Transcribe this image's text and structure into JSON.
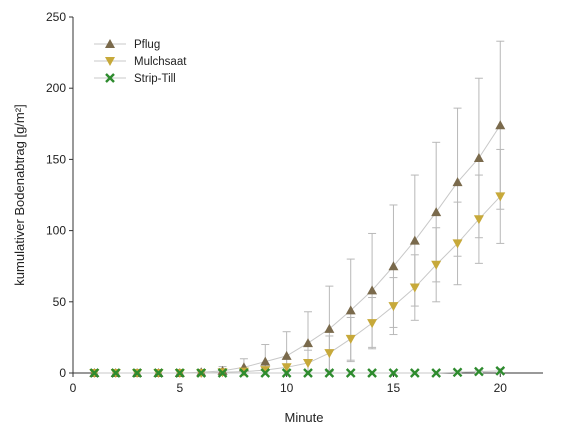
{
  "chart_data": {
    "type": "line",
    "xlabel": "Minute",
    "ylabel": "kumulativer Bodenabtrag [g/m²]",
    "xlim": [
      0,
      22
    ],
    "ylim": [
      0,
      250
    ],
    "xticks": [
      0,
      5,
      10,
      15,
      20
    ],
    "yticks": [
      0,
      50,
      100,
      150,
      200,
      250
    ],
    "grid": false,
    "legend_position": "top-left",
    "x": [
      1,
      2,
      3,
      4,
      5,
      6,
      7,
      8,
      9,
      10,
      11,
      12,
      13,
      14,
      15,
      16,
      17,
      18,
      19,
      20
    ],
    "series": [
      {
        "name": "Pflug",
        "marker": "triangle-up",
        "color": "#7a6a4c",
        "values": [
          0,
          0,
          0,
          0,
          0,
          0.5,
          1.5,
          4,
          8,
          12,
          21,
          31,
          44,
          58,
          75,
          93,
          113,
          134,
          151,
          174
        ],
        "error": [
          0,
          0,
          0,
          0,
          0,
          1,
          3,
          6,
          12,
          17,
          22,
          30,
          36,
          40,
          43,
          46,
          49,
          52,
          56,
          59
        ]
      },
      {
        "name": "Mulchsaat",
        "marker": "triangle-down",
        "color": "#c7a93a",
        "values": [
          0,
          0,
          0,
          0,
          0,
          0,
          0.5,
          1,
          2,
          4,
          7,
          14,
          24,
          35,
          47,
          60,
          76,
          91,
          108,
          124
        ],
        "error": [
          0,
          0,
          0,
          0,
          0,
          0,
          1,
          2,
          4,
          6,
          9,
          12,
          15,
          18,
          20,
          23,
          26,
          29,
          31,
          33
        ]
      },
      {
        "name": "Strip-Till",
        "marker": "x",
        "color": "#2e8b2e",
        "values": [
          0,
          0,
          0,
          0,
          0,
          0,
          0,
          0,
          0,
          0,
          0,
          0,
          0,
          0,
          0,
          0,
          0,
          0.5,
          1,
          1.5
        ],
        "error": [
          0,
          0,
          0,
          0,
          0,
          0,
          0,
          0,
          0,
          0,
          0,
          0,
          0,
          0,
          0,
          0,
          0,
          1,
          1,
          1.5
        ]
      }
    ]
  }
}
